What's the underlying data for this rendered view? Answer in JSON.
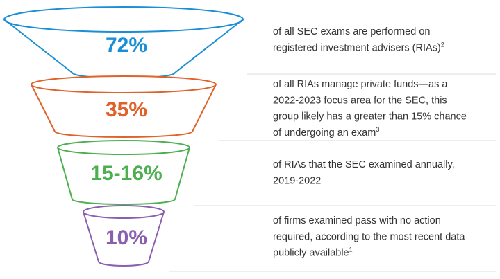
{
  "levels": [
    {
      "stat": "72%",
      "lines": [
        "of all SEC exams are performed on",
        "registered investment advisers (RIAs)"
      ],
      "note": "2"
    },
    {
      "stat": "35%",
      "lines": [
        "of all RIAs manage private funds—as a",
        "2022-2023 focus area for the SEC, this",
        "group likely has a greater than 15% chance",
        "of undergoing an exam"
      ],
      "note": "3"
    },
    {
      "stat": "15-16%",
      "lines": [
        "of RIAs that the SEC examined annually,",
        "2019-2022"
      ]
    },
    {
      "stat": "10%",
      "lines": [
        "of firms examined pass with no action",
        "required, according to the most recent data",
        "publicly available"
      ],
      "note": "1"
    }
  ]
}
